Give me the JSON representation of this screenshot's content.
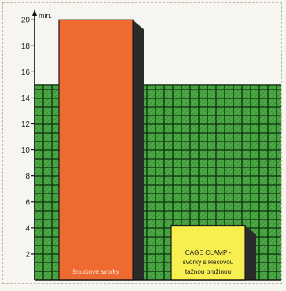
{
  "chart_data": {
    "type": "bar",
    "ylabel": "min.",
    "yticks": [
      2,
      4,
      6,
      8,
      10,
      12,
      14,
      16,
      18,
      20
    ],
    "ylim": [
      0,
      20.8
    ],
    "background_band_max": 15,
    "categories": [
      {
        "lines": [
          "šroubové svorky"
        ]
      },
      {
        "lines": [
          "CAGE CLAMP -",
          "svorky s klecovou",
          "tažnou pružinou"
        ]
      }
    ],
    "values": [
      20,
      4.2
    ],
    "colors": {
      "band": "#4caa45",
      "grid": "#0c2e0f",
      "bar1": "#ee6a31",
      "bar2": "#f7ef50",
      "shadow": "#2b2b2b",
      "axis": "#111111"
    }
  }
}
